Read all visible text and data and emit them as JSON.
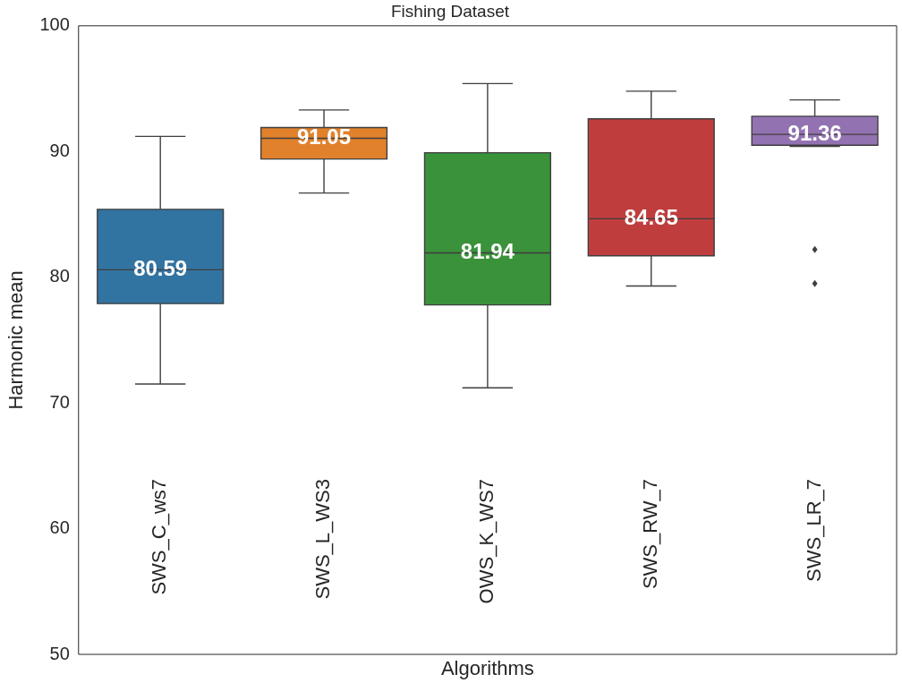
{
  "chart_data": {
    "type": "box",
    "title": "Fishing Dataset",
    "xlabel": "Algorithms",
    "ylabel": "Harmonic mean",
    "categories": [
      "SWS_C_ws7",
      "SWS_L_WS3",
      "OWS_K_WS7",
      "SWS_RW_7",
      "SWS_LR_7"
    ],
    "colors": [
      "#3274a1",
      "#e1812c",
      "#3a923a",
      "#c03d3e",
      "#9372b2"
    ],
    "boxes": [
      {
        "low": 71.5,
        "q1": 77.9,
        "median": 80.59,
        "q3": 85.4,
        "high": 91.2
      },
      {
        "low": 86.7,
        "q1": 89.4,
        "median": 91.05,
        "q3": 91.9,
        "high": 93.3
      },
      {
        "low": 71.2,
        "q1": 77.8,
        "median": 81.94,
        "q3": 89.9,
        "high": 95.4
      },
      {
        "low": 79.3,
        "q1": 81.7,
        "median": 84.65,
        "q3": 92.6,
        "high": 94.8
      },
      {
        "low": 90.4,
        "q1": 90.5,
        "median": 91.36,
        "q3": 92.8,
        "high": 94.1,
        "outliers": [
          82.2,
          79.5
        ]
      }
    ],
    "value_labels": [
      "80.59",
      "91.05",
      "81.94",
      "84.65",
      "91.36"
    ],
    "ylim": [
      50,
      100
    ],
    "yticks": [
      50,
      60,
      70,
      80,
      90,
      100
    ],
    "grid": false
  }
}
